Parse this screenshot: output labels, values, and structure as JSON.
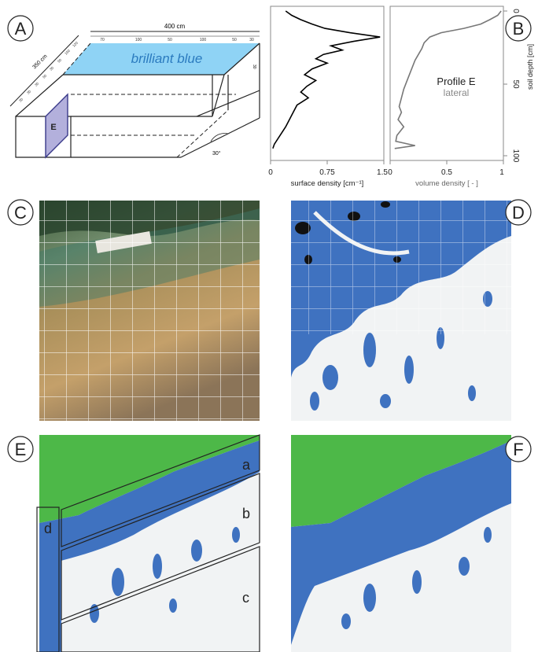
{
  "panel_labels": {
    "A": "A",
    "B": "B",
    "C": "C",
    "D": "D",
    "E": "E",
    "F": "F"
  },
  "panel_a": {
    "top_width_label": "400 cm",
    "top_ticks": [
      "70",
      "100",
      "50",
      "100",
      "50",
      "30"
    ],
    "side_width_label": "350 cm",
    "side_ticks": [
      "120",
      "150",
      "50",
      "30",
      "50",
      "30",
      "30",
      "30"
    ],
    "right_tick": "30",
    "tracer_label": "brilliant blue",
    "profile_letter": "E",
    "slope_label": "30°"
  },
  "panel_b": {
    "profile_title": "Profile E",
    "profile_subtitle": "lateral",
    "depth_axis_label": "soil depth [cm]",
    "depth_ticks": [
      "0",
      "50",
      "100"
    ],
    "left_plot": {
      "xlabel": "surface density [cm⁻¹]",
      "xticks": [
        "0",
        "0.75",
        "1.5"
      ],
      "line_color": "#000000"
    },
    "right_plot": {
      "xlabel": "volume density [ - ]",
      "xticks": [
        "0",
        "0.5",
        "1"
      ],
      "line_color": "#777777"
    }
  },
  "panel_e": {
    "zone_labels": [
      "a",
      "b",
      "c",
      "d"
    ]
  },
  "colors": {
    "stain_blue": "#3f72c0",
    "unstained": "#f1f3f4",
    "surface_green": "#4db848",
    "dye_blue": "#8fd3f5"
  },
  "chart_data": [
    {
      "type": "line",
      "title": "",
      "xlabel": "surface density [cm⁻¹]",
      "ylabel": "soil depth [cm]",
      "xlim": [
        0,
        1.5
      ],
      "ylim": [
        100,
        0
      ],
      "series": [
        {
          "x": [
            0.2,
            0.28,
            0.4,
            0.55,
            0.72,
            1.05,
            1.45,
            1.1,
            0.8,
            0.95,
            0.7,
            0.6,
            0.75,
            0.55,
            0.45,
            0.6,
            0.48,
            0.4,
            0.5,
            0.35,
            0.3,
            0.25,
            0.2,
            0.15,
            0.1,
            0.05,
            0.03
          ],
          "y": [
            0,
            3,
            6,
            9,
            12,
            15,
            18,
            21,
            24,
            27,
            30,
            33,
            36,
            40,
            44,
            48,
            52,
            56,
            60,
            65,
            70,
            75,
            80,
            84,
            88,
            92,
            95
          ]
        }
      ]
    },
    {
      "type": "line",
      "title": "",
      "xlabel": "volume density [ - ]",
      "ylabel": "soil depth [cm]",
      "xlim": [
        0,
        1
      ],
      "ylim": [
        100,
        0
      ],
      "series": [
        {
          "x": [
            0.98,
            0.95,
            0.88,
            0.8,
            0.65,
            0.45,
            0.35,
            0.3,
            0.28,
            0.25,
            0.22,
            0.2,
            0.18,
            0.15,
            0.12,
            0.1,
            0.08,
            0.1,
            0.07,
            0.12,
            0.06,
            0.05,
            0.22,
            0.04
          ],
          "y": [
            0,
            3,
            6,
            9,
            12,
            15,
            18,
            22,
            26,
            30,
            34,
            38,
            42,
            48,
            54,
            60,
            66,
            70,
            75,
            80,
            86,
            90,
            93,
            95
          ]
        }
      ]
    }
  ]
}
